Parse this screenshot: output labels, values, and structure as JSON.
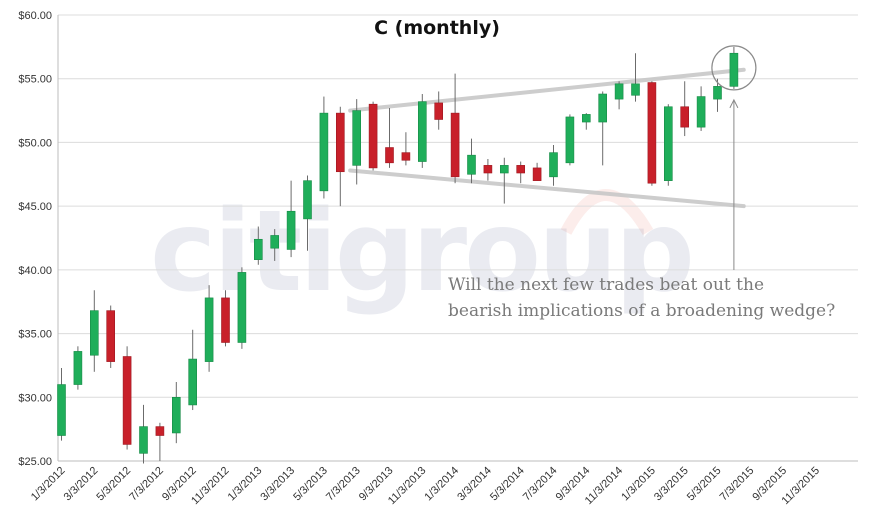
{
  "chart_data": {
    "type": "candlestick",
    "title": "C (monthly)",
    "xlabel": "",
    "ylabel": "",
    "ylim": [
      25,
      60
    ],
    "y_ticks": [
      "$25.00",
      "$30.00",
      "$35.00",
      "$40.00",
      "$45.00",
      "$50.00",
      "$55.00",
      "$60.00"
    ],
    "y_tick_values": [
      25,
      30,
      35,
      40,
      45,
      50,
      55,
      60
    ],
    "x_ticks": [
      "1/3/2012",
      "3/3/2012",
      "5/3/2012",
      "7/3/2012",
      "9/3/2012",
      "11/3/2012",
      "1/3/2013",
      "3/3/2013",
      "5/3/2013",
      "7/3/2013",
      "9/3/2013",
      "11/3/2013",
      "1/3/2014",
      "3/3/2014",
      "5/3/2014",
      "7/3/2014",
      "9/3/2014",
      "11/3/2014",
      "1/3/2015",
      "3/3/2015",
      "5/3/2015",
      "7/3/2015",
      "9/3/2015",
      "11/3/2015"
    ],
    "grid": true,
    "up_color": "#1fae5a",
    "down_color": "#c8202a",
    "candles": [
      {
        "o": 27.0,
        "h": 32.3,
        "l": 26.6,
        "c": 31.0
      },
      {
        "o": 31.0,
        "h": 34.0,
        "l": 30.6,
        "c": 33.6
      },
      {
        "o": 33.3,
        "h": 38.4,
        "l": 32.0,
        "c": 36.8
      },
      {
        "o": 36.8,
        "h": 37.2,
        "l": 32.3,
        "c": 32.8
      },
      {
        "o": 33.2,
        "h": 34.0,
        "l": 25.9,
        "c": 26.3
      },
      {
        "o": 25.6,
        "h": 29.4,
        "l": 24.8,
        "c": 27.7
      },
      {
        "o": 27.7,
        "h": 28.0,
        "l": 25.0,
        "c": 27.0
      },
      {
        "o": 27.2,
        "h": 31.2,
        "l": 26.4,
        "c": 30.0
      },
      {
        "o": 29.4,
        "h": 35.3,
        "l": 29.0,
        "c": 33.0
      },
      {
        "o": 32.8,
        "h": 38.8,
        "l": 32.0,
        "c": 37.8
      },
      {
        "o": 37.8,
        "h": 38.4,
        "l": 34.0,
        "c": 34.3
      },
      {
        "o": 34.3,
        "h": 40.2,
        "l": 33.8,
        "c": 39.8
      },
      {
        "o": 40.8,
        "h": 43.4,
        "l": 40.4,
        "c": 42.4
      },
      {
        "o": 41.7,
        "h": 43.2,
        "l": 40.7,
        "c": 42.7
      },
      {
        "o": 41.6,
        "h": 47.0,
        "l": 41.0,
        "c": 44.6
      },
      {
        "o": 44.0,
        "h": 47.4,
        "l": 41.5,
        "c": 47.0
      },
      {
        "o": 46.2,
        "h": 53.6,
        "l": 45.6,
        "c": 52.3
      },
      {
        "o": 52.3,
        "h": 52.8,
        "l": 45.0,
        "c": 47.7
      },
      {
        "o": 48.2,
        "h": 53.4,
        "l": 46.7,
        "c": 52.5
      },
      {
        "o": 53.0,
        "h": 53.2,
        "l": 47.8,
        "c": 48.0
      },
      {
        "o": 49.6,
        "h": 52.7,
        "l": 48.0,
        "c": 48.4
      },
      {
        "o": 49.2,
        "h": 50.8,
        "l": 48.2,
        "c": 48.6
      },
      {
        "o": 48.5,
        "h": 53.8,
        "l": 48.0,
        "c": 53.2
      },
      {
        "o": 53.1,
        "h": 54.0,
        "l": 51.0,
        "c": 51.8
      },
      {
        "o": 52.3,
        "h": 55.4,
        "l": 46.8,
        "c": 47.3
      },
      {
        "o": 47.5,
        "h": 50.3,
        "l": 46.8,
        "c": 49.0
      },
      {
        "o": 48.2,
        "h": 48.7,
        "l": 47.0,
        "c": 47.6
      },
      {
        "o": 47.6,
        "h": 48.8,
        "l": 45.2,
        "c": 48.2
      },
      {
        "o": 48.2,
        "h": 48.5,
        "l": 46.8,
        "c": 47.6
      },
      {
        "o": 48.0,
        "h": 48.4,
        "l": 47.0,
        "c": 47.0
      },
      {
        "o": 47.3,
        "h": 49.8,
        "l": 46.6,
        "c": 49.2
      },
      {
        "o": 48.4,
        "h": 52.2,
        "l": 48.2,
        "c": 52.0
      },
      {
        "o": 51.6,
        "h": 52.3,
        "l": 51.0,
        "c": 52.2
      },
      {
        "o": 51.6,
        "h": 54.0,
        "l": 48.2,
        "c": 53.8
      },
      {
        "o": 53.4,
        "h": 54.8,
        "l": 52.6,
        "c": 54.6
      },
      {
        "o": 53.7,
        "h": 57.0,
        "l": 53.2,
        "c": 54.6
      },
      {
        "o": 54.7,
        "h": 54.8,
        "l": 46.6,
        "c": 46.8
      },
      {
        "o": 47.0,
        "h": 53.0,
        "l": 46.6,
        "c": 52.8
      },
      {
        "o": 52.8,
        "h": 54.8,
        "l": 50.5,
        "c": 51.2
      },
      {
        "o": 51.2,
        "h": 54.4,
        "l": 50.9,
        "c": 53.6
      },
      {
        "o": 53.4,
        "h": 55.0,
        "l": 52.4,
        "c": 54.4
      },
      {
        "o": 54.4,
        "h": 57.5,
        "l": 54.2,
        "c": 57.0
      }
    ],
    "trendlines": [
      {
        "x0": 17.6,
        "y0": 52.5,
        "x1": 41.6,
        "y1": 55.7
      },
      {
        "x0": 17.6,
        "y0": 47.8,
        "x1": 41.6,
        "y1": 45.0
      }
    ],
    "highlight_index": 41,
    "annotation": "Will the next few trades beat out the bearish implications of a broadening wedge?",
    "annotation_lines": [
      "Will the next few trades beat out the",
      "bearish implications of a broadening wedge?"
    ],
    "watermark": "citigroup"
  }
}
